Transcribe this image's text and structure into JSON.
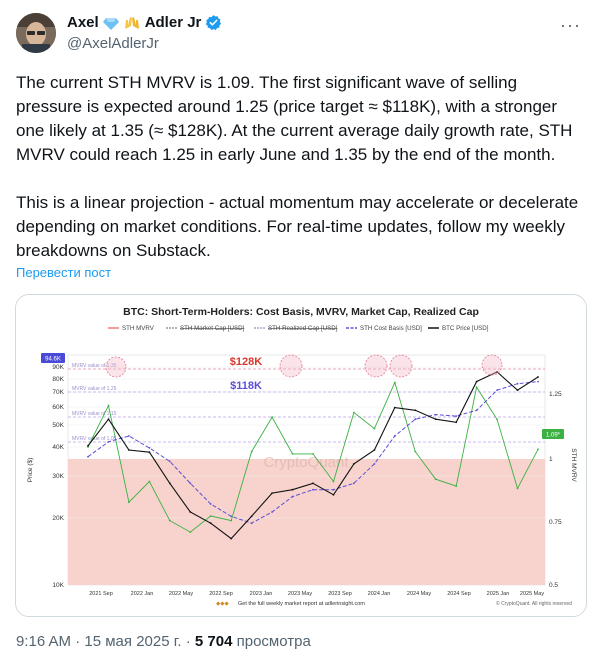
{
  "tweet": {
    "author_name": "Axel",
    "author_name_suffix": "Adler Jr",
    "emoji_icons": [
      "gem-icon",
      "raised-hands-icon"
    ],
    "handle": "@AxelAdlerJr",
    "paragraph1": "The current STH MVRV is 1.09. The first significant wave of selling pressure is expected around 1.25 (price target ≈ $118K), with a stronger one likely at 1.35 (≈ $128K). At the current average daily growth rate, STH MVRV could reach 1.25 in early June and 1.35 by the end of the month.",
    "paragraph2": "This is a linear projection -  actual momentum may accelerate or decelerate depending on market conditions. For real-time updates, follow my weekly breakdowns on Substack.",
    "translate_label": "Перевести пост",
    "time": "9:16 AM",
    "sep": "·",
    "date": "15 мая 2025 г.",
    "views_count": "5 704",
    "views_label": "просмотра",
    "verified_color": "#1d9bf0"
  },
  "chart_data": {
    "type": "line",
    "title": "BTC: Short-Term-Holders: Cost Basis, MVRV, Market Cap, Realized Cap",
    "legend": [
      "STH MVRV",
      "STH Market Cap [USD]",
      "STH Realized Cap [USD]",
      "STH Cost Basis [USD]",
      "BTC Price [USD]"
    ],
    "legend_colors": [
      "#f07a7a",
      "#999999",
      "#b0a0d0",
      "#5b4fd6",
      "#111111"
    ],
    "annotations": [
      "$128K",
      "$118K"
    ],
    "annotation_colors": [
      "#d9362e",
      "#5b4fd6"
    ],
    "mvrv_levels": [
      "MVRV value of 1.35",
      "MVRV value of 1.25",
      "MVRV value of 1.15",
      "MVRV value of 1.05"
    ],
    "ylabel_left": "Price ($)",
    "ylabel_right": "STH MVRV",
    "y_left_ticks": [
      "90K",
      "80K",
      "70K",
      "60K",
      "50K",
      "40K",
      "30K",
      "20K",
      "10K"
    ],
    "y_right_ticks": [
      "1.25",
      "1",
      "0.75",
      "0.5"
    ],
    "current_price_badge": "94.6K",
    "current_mvrv_badge": "1.09*",
    "x_ticks": [
      "2021 Sep",
      "2022 Jan",
      "2022 May",
      "2022 Sep",
      "2023 Jan",
      "2023 May",
      "2023 Sep",
      "2024 Jan",
      "2024 May",
      "2024 Sep",
      "2025 Jan",
      "2025 May"
    ],
    "watermark": "CryptoQuant",
    "footer_note": "Get the full weekly market report at adlerinsight.com",
    "copyright": "© CryptoQuant. All rights reserved",
    "y_log_scale": true,
    "ylim_price": [
      10000,
      120000
    ],
    "ylim_mvrv": [
      0.5,
      1.5
    ],
    "series": [
      {
        "name": "BTC Price [USD]",
        "x": [
          "2021 Sep",
          "2021 Nov",
          "2022 Jan",
          "2022 Mar",
          "2022 May",
          "2022 Jul",
          "2022 Sep",
          "2022 Nov",
          "2023 Jan",
          "2023 Mar",
          "2023 May",
          "2023 Jul",
          "2023 Sep",
          "2023 Nov",
          "2024 Jan",
          "2024 Mar",
          "2024 May",
          "2024 Jul",
          "2024 Sep",
          "2024 Nov",
          "2025 Jan",
          "2025 Mar",
          "2025 May"
        ],
        "values": [
          45000,
          60000,
          43000,
          42000,
          30000,
          22000,
          19500,
          16500,
          21000,
          27000,
          28000,
          30000,
          26500,
          37000,
          43000,
          68000,
          66000,
          60000,
          58000,
          90000,
          100000,
          82000,
          94600
        ]
      },
      {
        "name": "STH Cost Basis [USD]",
        "x": [
          "2021 Sep",
          "2021 Nov",
          "2022 Jan",
          "2022 Mar",
          "2022 May",
          "2022 Jul",
          "2022 Sep",
          "2022 Nov",
          "2023 Jan",
          "2023 Mar",
          "2023 May",
          "2023 Jul",
          "2023 Sep",
          "2023 Nov",
          "2024 Jan",
          "2024 Mar",
          "2024 May",
          "2024 Jul",
          "2024 Sep",
          "2024 Nov",
          "2025 Jan",
          "2025 Mar",
          "2025 May"
        ],
        "values": [
          40000,
          47000,
          50000,
          44000,
          38000,
          30000,
          24000,
          21000,
          19500,
          22000,
          26000,
          28000,
          28000,
          30000,
          37000,
          50000,
          60000,
          63000,
          62000,
          66000,
          82000,
          88000,
          90000
        ]
      },
      {
        "name": "STH MVRV",
        "x": [
          "2021 Sep",
          "2021 Nov",
          "2022 Jan",
          "2022 Mar",
          "2022 May",
          "2022 Jul",
          "2022 Sep",
          "2022 Nov",
          "2023 Jan",
          "2023 Mar",
          "2023 May",
          "2023 Jul",
          "2023 Sep",
          "2023 Nov",
          "2024 Jan",
          "2024 Mar",
          "2024 May",
          "2024 Jul",
          "2024 Sep",
          "2024 Nov",
          "2025 Jan",
          "2025 Mar",
          "2025 May"
        ],
        "values": [
          1.1,
          1.28,
          0.86,
          0.95,
          0.78,
          0.73,
          0.8,
          0.78,
          1.08,
          1.23,
          1.07,
          1.07,
          0.95,
          1.25,
          1.18,
          1.38,
          1.08,
          0.96,
          0.93,
          1.36,
          1.22,
          0.92,
          1.09
        ]
      }
    ]
  }
}
